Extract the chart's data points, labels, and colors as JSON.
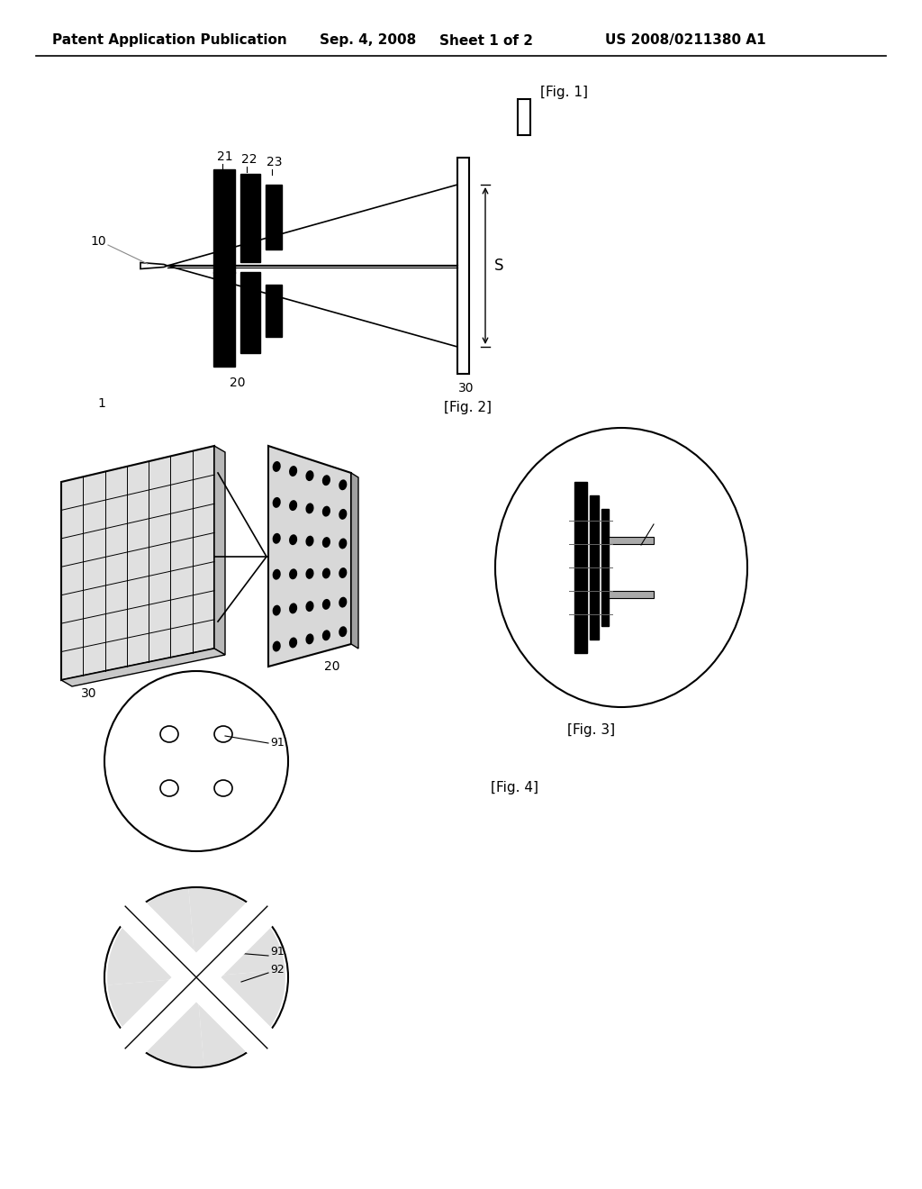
{
  "bg_color": "#ffffff",
  "header_text": "Patent Application Publication",
  "header_date": "Sep. 4, 2008",
  "header_sheet": "Sheet 1 of 2",
  "header_patent": "US 2008/0211380 A1",
  "fig1_label": "[Fig. 1]",
  "fig2_label": "[Fig. 2]",
  "fig3_label": "[Fig. 3]",
  "fig4_label": "[Fig. 4]"
}
